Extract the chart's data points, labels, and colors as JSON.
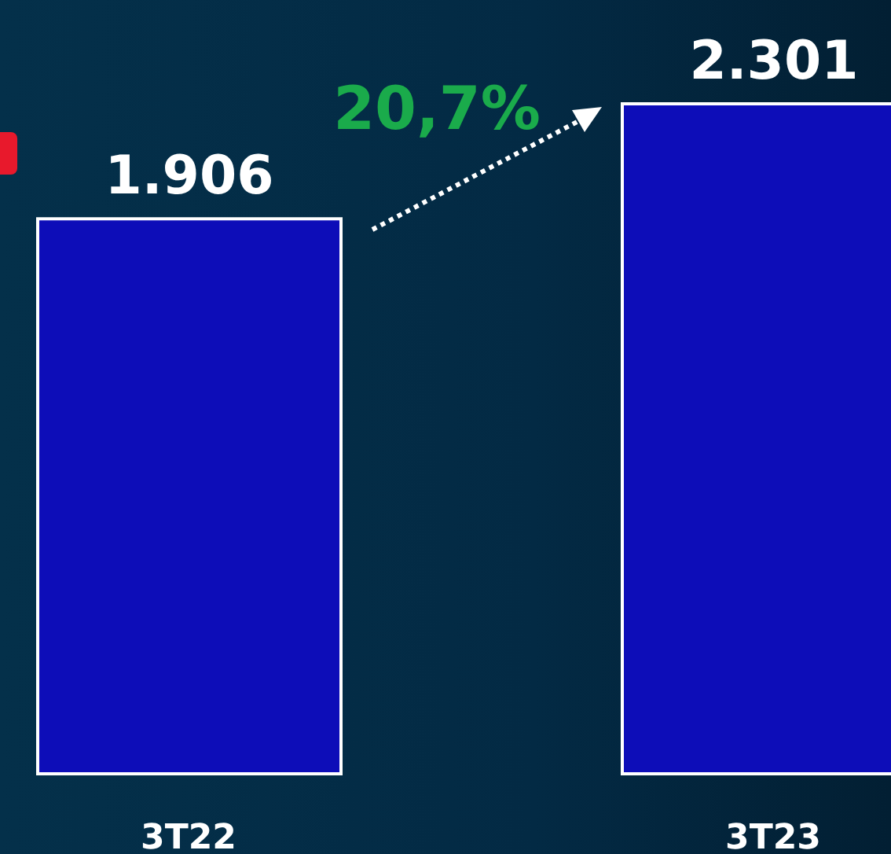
{
  "chart_data": {
    "type": "bar",
    "categories": [
      "3T22",
      "3T23"
    ],
    "values": [
      1906,
      2301
    ],
    "value_labels": [
      "1.906",
      "2.301"
    ],
    "color": "#0d0db8",
    "annotations": [
      "20,7%"
    ],
    "grid": false,
    "legend": false
  }
}
